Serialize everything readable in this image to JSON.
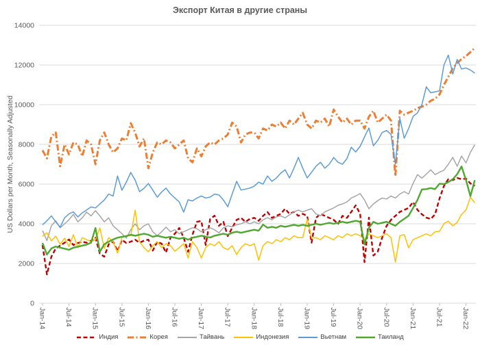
{
  "title": "Экспорт Китая в другие страны",
  "chart_data": {
    "type": "line",
    "title": "Экспорт Китая в другие страны",
    "xlabel": "",
    "ylabel": "US Dollars per Month, Seasonally Adjusted",
    "ylim": [
      0,
      14000
    ],
    "ytick_step": 2000,
    "ytick_labels": [
      "0",
      "2000",
      "4000",
      "6000",
      "8000",
      "10000",
      "12000",
      "14000"
    ],
    "grid": "horizontal",
    "legend_position": "bottom",
    "x_unit": "month",
    "x_start": "Jan-14",
    "x_end": "Mar-22",
    "x_tick_labels": [
      "Jan-14",
      "Jul-14",
      "Jan-15",
      "Jul-15",
      "Jan-16",
      "Jul-16",
      "Jan-17",
      "Jul-17",
      "Jan-18",
      "Jul-18",
      "Jan-19",
      "Jul-19",
      "Jan-20",
      "Jul-20",
      "Jan-21",
      "Jul-21",
      "Jan-22"
    ],
    "axis_text_color": "#595959",
    "grid_color": "#d9d9d9",
    "series": [
      {
        "name": "Индия",
        "color": "#c00000",
        "style": "dashed",
        "dash": "6 3.5",
        "width": 2.4,
        "values": [
          2930,
          1450,
          2340,
          2760,
          2900,
          3050,
          3210,
          2930,
          3030,
          3100,
          3050,
          3150,
          3300,
          2500,
          2340,
          2970,
          3100,
          2620,
          3200,
          3030,
          3100,
          3200,
          3050,
          3150,
          3200,
          2650,
          3100,
          3000,
          2550,
          3300,
          3500,
          3790,
          3300,
          2590,
          3450,
          4100,
          4140,
          2930,
          4240,
          4410,
          3900,
          4100,
          3380,
          3800,
          4200,
          4300,
          4100,
          4250,
          4300,
          4150,
          4400,
          4590,
          4300,
          4400,
          4500,
          4760,
          4500,
          4600,
          4400,
          4500,
          4400,
          3050,
          4300,
          4500,
          4400,
          4300,
          4200,
          4000,
          4400,
          4300,
          4600,
          4930,
          4500,
          2070,
          4310,
          2400,
          2600,
          3300,
          3900,
          4200,
          4400,
          4600,
          4700,
          4800,
          5100,
          4700,
          4480,
          4310,
          4240,
          4480,
          5280,
          5910,
          6250,
          6200,
          6310,
          6250,
          6280,
          6030,
          5910
        ]
      },
      {
        "name": "Корея",
        "color": "#ed7d31",
        "style": "dash-dot",
        "dash": "9 3.5 2 3.5",
        "width": 3,
        "values": [
          7700,
          7300,
          8400,
          8600,
          6900,
          8000,
          7500,
          8100,
          8000,
          7400,
          8200,
          8000,
          7000,
          8200,
          8600,
          8000,
          7600,
          7800,
          8300,
          8200,
          9070,
          8600,
          7900,
          8300,
          6800,
          7600,
          8100,
          8000,
          8200,
          8100,
          7800,
          8000,
          8200,
          7300,
          7100,
          7800,
          7400,
          7900,
          8100,
          8000,
          8200,
          8300,
          8500,
          9100,
          8900,
          8100,
          8500,
          8600,
          8600,
          8300,
          8800,
          8700,
          9000,
          8900,
          9100,
          8800,
          9200,
          9000,
          9300,
          9590,
          9000,
          8800,
          9200,
          9100,
          9300,
          8900,
          9760,
          9400,
          9100,
          9300,
          9000,
          9200,
          9200,
          8800,
          9400,
          9690,
          9100,
          9300,
          9500,
          9200,
          6400,
          9700,
          9500,
          9600,
          9690,
          9830,
          9900,
          10000,
          10200,
          10300,
          10520,
          11000,
          11410,
          11830,
          12100,
          12300,
          12450,
          12650,
          12860
        ]
      },
      {
        "name": "Тайвань",
        "color": "#a5a5a5",
        "style": "solid",
        "dash": "",
        "width": 1.5,
        "values": [
          3660,
          3150,
          3900,
          4150,
          3800,
          4000,
          4200,
          4480,
          4100,
          4300,
          4590,
          4400,
          4660,
          4400,
          4100,
          4300,
          3900,
          3700,
          3500,
          3280,
          3700,
          4000,
          3700,
          3900,
          4000,
          3600,
          3400,
          3600,
          3830,
          3600,
          3700,
          3500,
          3600,
          3700,
          3800,
          3750,
          3600,
          3700,
          3800,
          3700,
          3550,
          3800,
          3900,
          3850,
          3950,
          4000,
          4100,
          4000,
          4100,
          4000,
          4200,
          4310,
          4200,
          4350,
          4400,
          4300,
          4450,
          4600,
          4690,
          4600,
          4690,
          4760,
          4500,
          4400,
          4600,
          4700,
          4800,
          4930,
          5000,
          5100,
          5300,
          5400,
          5520,
          5200,
          4760,
          5000,
          5170,
          5300,
          5250,
          5400,
          5300,
          5500,
          5620,
          5500,
          6030,
          6480,
          6300,
          6500,
          6720,
          6480,
          6600,
          6700,
          7000,
          7345,
          6900,
          7410,
          7070,
          7600,
          7980
        ]
      },
      {
        "name": "Индонезия",
        "color": "#ffc000",
        "style": "solid",
        "dash": "",
        "width": 1.5,
        "values": [
          3380,
          3550,
          3140,
          3380,
          2970,
          3280,
          2860,
          3450,
          2790,
          3300,
          3200,
          3100,
          3200,
          3790,
          2760,
          3300,
          3100,
          2520,
          3310,
          3400,
          3400,
          4690,
          3100,
          2800,
          2590,
          2900,
          3100,
          2800,
          3000,
          2900,
          2620,
          2800,
          3000,
          2280,
          3100,
          2800,
          2280,
          2800,
          3000,
          2900,
          3100,
          2800,
          2700,
          2900,
          2450,
          2800,
          3000,
          2900,
          3000,
          2170,
          2900,
          3100,
          3000,
          3200,
          3100,
          3300,
          3200,
          3400,
          3300,
          3300,
          4240,
          3280,
          3300,
          3200,
          3400,
          3300,
          3200,
          3400,
          3300,
          3500,
          3400,
          3500,
          3400,
          3200,
          3500,
          3400,
          3300,
          3400,
          3500,
          3300,
          2070,
          3400,
          3450,
          2790,
          3200,
          3300,
          3400,
          3500,
          3400,
          3600,
          3620,
          4010,
          4130,
          3900,
          4070,
          4480,
          4700,
          5340,
          5050
        ]
      },
      {
        "name": "Вьетнам",
        "color": "#5b9bd5",
        "style": "solid",
        "dash": "",
        "width": 1.5,
        "values": [
          3950,
          4150,
          4400,
          4100,
          3830,
          4300,
          4500,
          4600,
          4350,
          4550,
          4700,
          4850,
          4800,
          5000,
          5200,
          5500,
          5400,
          6410,
          5690,
          6100,
          6590,
          6200,
          5620,
          5790,
          6030,
          5700,
          5340,
          5600,
          5800,
          5500,
          5300,
          5100,
          4590,
          5210,
          5150,
          5300,
          5400,
          5300,
          5350,
          5500,
          5450,
          5200,
          4860,
          5500,
          6140,
          5700,
          5750,
          5800,
          5900,
          6100,
          6000,
          6410,
          6140,
          6300,
          6550,
          6720,
          6310,
          6800,
          7345,
          6800,
          6310,
          6600,
          6900,
          7100,
          6800,
          7000,
          7340,
          7100,
          7000,
          7280,
          7860,
          7620,
          7900,
          8380,
          8830,
          7930,
          8200,
          8600,
          8700,
          8500,
          7000,
          9310,
          8310,
          8800,
          9410,
          9590,
          10000,
          10900,
          10600,
          10650,
          10700,
          12000,
          12500,
          11550,
          12280,
          11800,
          11850,
          11750,
          11590
        ]
      },
      {
        "name": "Таиланд",
        "color": "#4ea72e",
        "style": "solid",
        "dash": "",
        "width": 2.4,
        "values": [
          3030,
          2450,
          2760,
          2860,
          2800,
          2750,
          2690,
          2800,
          2850,
          2900,
          2950,
          3050,
          3790,
          2590,
          2970,
          3100,
          3210,
          3300,
          3350,
          3380,
          3450,
          3400,
          3450,
          3500,
          3450,
          3350,
          3400,
          3350,
          3300,
          3350,
          3300,
          3250,
          3300,
          3200,
          3300,
          3350,
          3400,
          3350,
          3310,
          3400,
          3450,
          3500,
          3450,
          3550,
          3600,
          3550,
          3600,
          3650,
          3700,
          3650,
          3960,
          3800,
          3850,
          3800,
          3900,
          3850,
          3900,
          3950,
          3900,
          3950,
          3900,
          3950,
          4000,
          3950,
          4000,
          4050,
          4000,
          4050,
          4100,
          4050,
          4100,
          4150,
          4100,
          2960,
          3800,
          4100,
          4000,
          4050,
          4100,
          4000,
          3900,
          4100,
          4250,
          4410,
          4800,
          5200,
          5730,
          5750,
          5800,
          5750,
          6020,
          6000,
          6100,
          6250,
          6500,
          6890,
          6200,
          5390,
          6200
        ]
      }
    ]
  }
}
